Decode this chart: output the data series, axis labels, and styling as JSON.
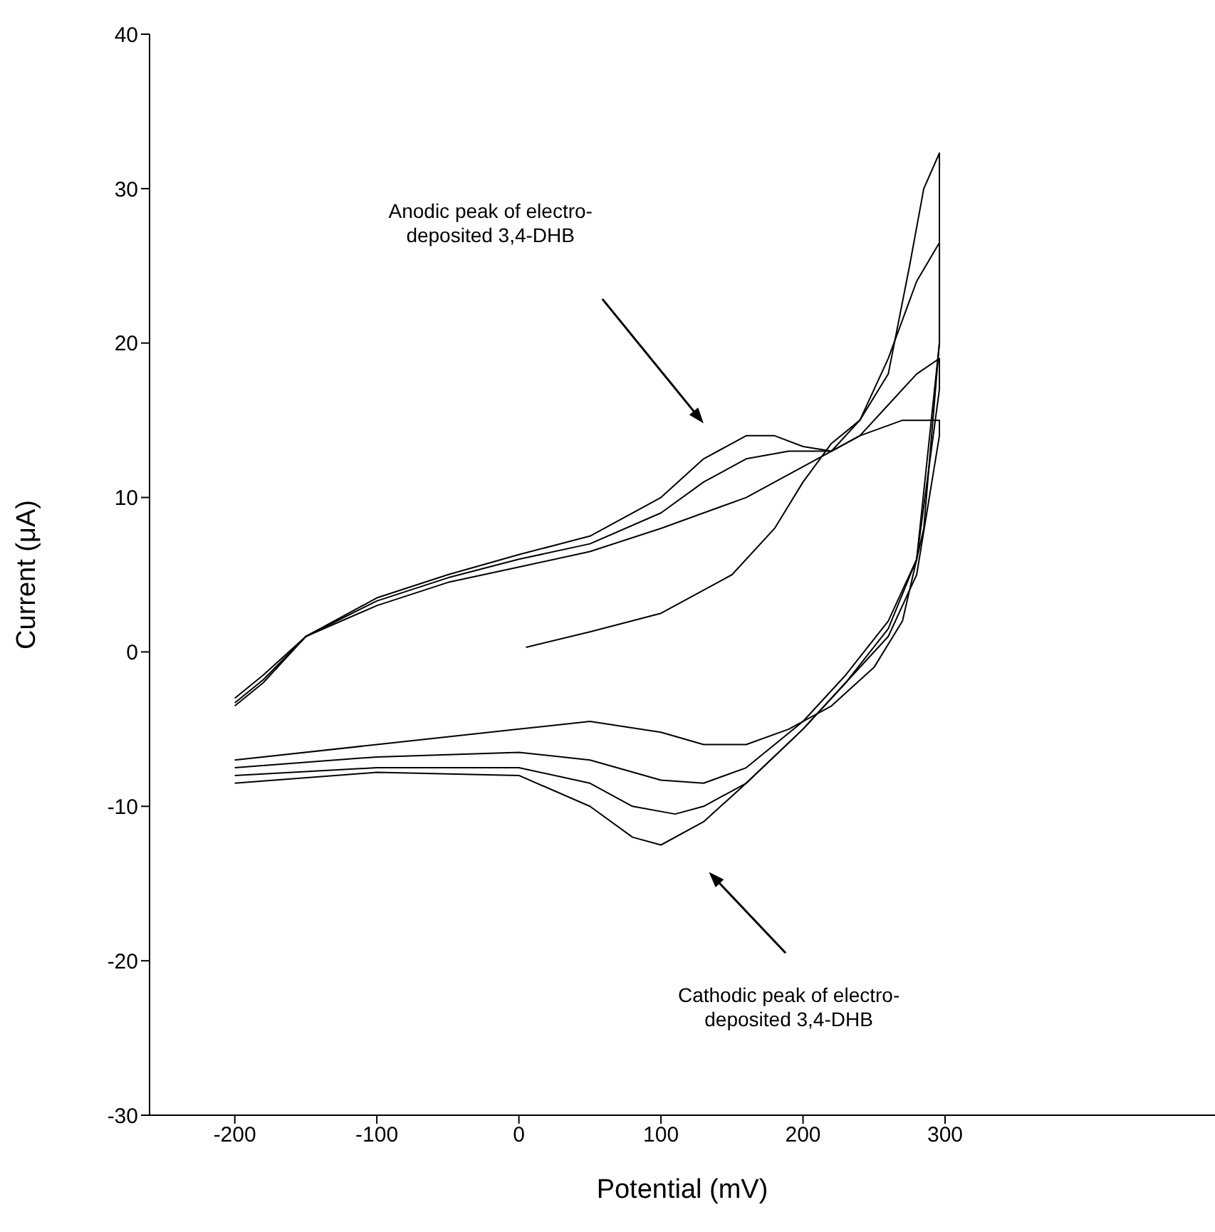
{
  "chart_data": {
    "type": "line",
    "xlabel": "Potential (mV)",
    "ylabel": "Current (μA)",
    "xlim": [
      -260,
      490
    ],
    "xticks": [
      -200,
      -100,
      0,
      100,
      200,
      300
    ],
    "ylim": [
      -30,
      40
    ],
    "yticks": [
      -30,
      -20,
      -10,
      0,
      10,
      20,
      30,
      40
    ],
    "grid": false,
    "legend": false,
    "marker": "none",
    "line_style": "solid",
    "annotations": [
      "Anodic peak of electro-deposited 3,4-DHB",
      "Cathodic peak of electro-deposited 3,4-DHB"
    ],
    "series": [
      {
        "color": "#000000",
        "x": [
          5,
          50,
          100,
          150,
          180,
          200,
          220,
          240,
          260,
          275,
          285,
          296,
          296,
          285,
          270,
          250,
          220,
          190,
          160,
          130,
          100,
          50,
          0,
          -100,
          -200
        ],
        "values": [
          0.3,
          1.3,
          2.5,
          5,
          8,
          11,
          13.5,
          15,
          18,
          25,
          30,
          32.3,
          20,
          8,
          2,
          -1,
          -3.5,
          -5,
          -6,
          -6,
          -5.2,
          -4.5,
          -5,
          -6,
          -7
        ]
      },
      {
        "color": "#000000",
        "x": [
          -200,
          -180,
          -150,
          -100,
          -50,
          0,
          50,
          100,
          130,
          160,
          190,
          220,
          240,
          260,
          280,
          296,
          296,
          280,
          260,
          230,
          200,
          160,
          130,
          100,
          50,
          0,
          -100,
          -200
        ],
        "values": [
          -3,
          -1.5,
          1,
          3,
          4.5,
          5.5,
          6.5,
          8,
          9,
          10,
          11.5,
          13,
          15,
          19,
          24,
          26.5,
          20,
          6,
          2,
          -1.5,
          -4.5,
          -7.5,
          -8.5,
          -8.3,
          -7,
          -6.5,
          -6.8,
          -7.5
        ]
      },
      {
        "color": "#000000",
        "x": [
          -200,
          -180,
          -150,
          -100,
          -50,
          0,
          50,
          100,
          130,
          160,
          190,
          220,
          240,
          260,
          280,
          296,
          296,
          280,
          260,
          230,
          200,
          160,
          130,
          110,
          80,
          50,
          0,
          -100,
          -200
        ],
        "values": [
          -3.3,
          -1.8,
          1,
          3.3,
          4.8,
          6,
          7,
          9,
          11,
          12.5,
          13,
          13,
          14,
          16,
          18,
          19,
          17,
          6,
          1.5,
          -2,
          -5,
          -8.5,
          -10,
          -10.5,
          -10,
          -8.5,
          -7.5,
          -7.5,
          -8
        ]
      },
      {
        "color": "#000000",
        "x": [
          -200,
          -180,
          -150,
          -100,
          -50,
          0,
          50,
          100,
          130,
          160,
          180,
          200,
          220,
          240,
          270,
          296,
          296,
          280,
          260,
          230,
          200,
          160,
          130,
          100,
          80,
          50,
          0,
          -100,
          -200
        ],
        "values": [
          -3.5,
          -2,
          1,
          3.5,
          5,
          6.3,
          7.5,
          10,
          12.5,
          14,
          14,
          13.3,
          13,
          14,
          15,
          15,
          14,
          5,
          1,
          -2,
          -5,
          -8.5,
          -11,
          -12.5,
          -12,
          -10,
          -8,
          -7.8,
          -8.5
        ]
      }
    ]
  }
}
